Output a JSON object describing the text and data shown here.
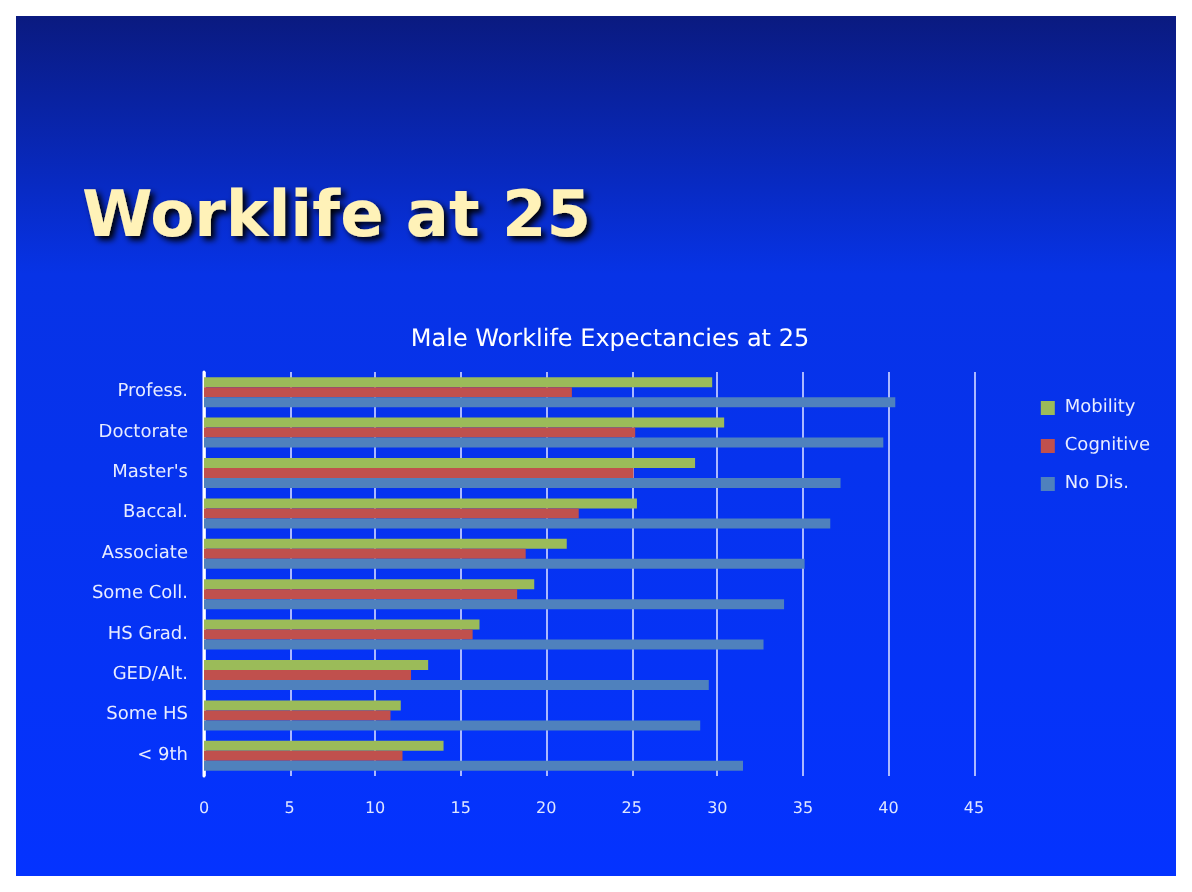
{
  "chart_data": {
    "type": "bar",
    "orientation": "horizontal",
    "title": "Worklife at 25",
    "subtitle": "Male Worklife Expectancies at 25",
    "categories": [
      "Profess.",
      "Doctorate",
      "Master's",
      "Baccal.",
      "Associate",
      "Some Coll.",
      "HS Grad.",
      "GED/Alt.",
      "Some HS",
      "< 9th"
    ],
    "series": [
      {
        "name": "Mobility",
        "color": "#9bbb59",
        "values": [
          29.7,
          30.4,
          28.7,
          25.3,
          21.2,
          19.3,
          16.1,
          13.1,
          11.5,
          14.0
        ]
      },
      {
        "name": "Cognitive",
        "color": "#c0504d",
        "values": [
          21.5,
          25.2,
          25.1,
          21.9,
          18.8,
          18.3,
          15.7,
          12.1,
          10.9,
          11.6
        ]
      },
      {
        "name": "No Dis.",
        "color": "#4f81bd",
        "values": [
          40.4,
          39.7,
          37.2,
          36.6,
          35.1,
          33.9,
          32.7,
          29.5,
          29.0,
          31.5
        ]
      }
    ],
    "xlim": [
      0,
      45
    ],
    "xticks": [
      0,
      5,
      10,
      15,
      20,
      25,
      30,
      35,
      40,
      45
    ],
    "grid": "x",
    "legend": "right"
  }
}
